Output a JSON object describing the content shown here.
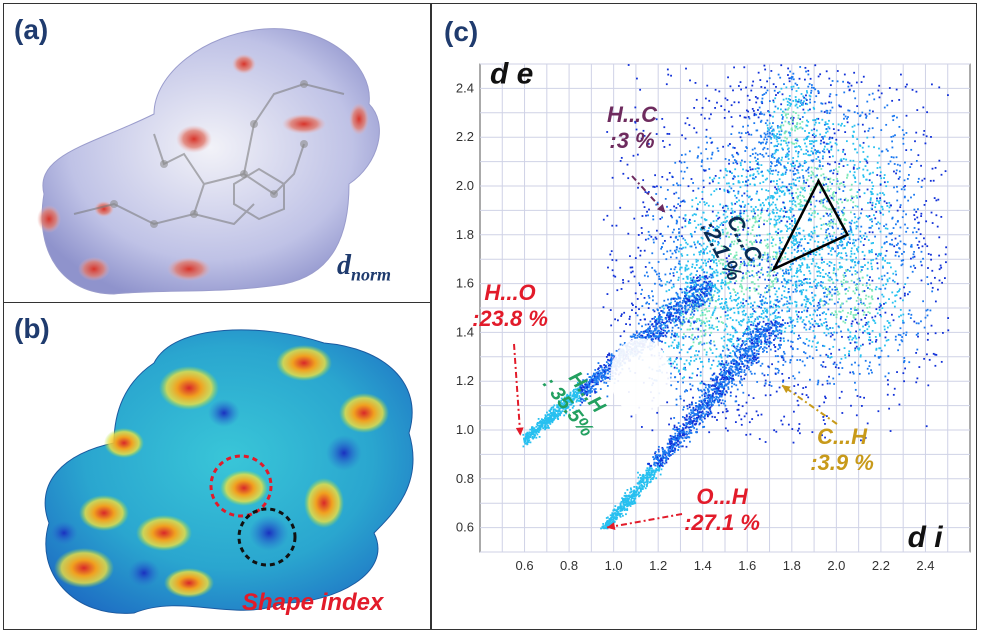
{
  "panels": {
    "a": {
      "label": "(a)",
      "caption_main": "d",
      "caption_sub": "norm"
    },
    "b": {
      "label": "(b)",
      "caption": "Shape index"
    },
    "c": {
      "label": "(c)",
      "axis_y_label": "d e",
      "axis_x_label": "d i"
    }
  },
  "colors": {
    "panel_label": "#1f3b6e",
    "h_o": "#e21b2a",
    "h_c": "#6e2b5e",
    "h_h": "#23a060",
    "c_h": "#c89a1a",
    "c_c": "#0a2b52"
  },
  "chart_data": {
    "type": "scatter",
    "title": "",
    "xlabel": "d i",
    "ylabel": "d e",
    "xlim": [
      0.4,
      2.6
    ],
    "ylim": [
      0.5,
      2.5
    ],
    "x_ticks": [
      "0.6",
      "0.8",
      "1.0",
      "1.2",
      "1.4",
      "1.6",
      "1.8",
      "2.0",
      "2.2",
      "2.4"
    ],
    "y_ticks": [
      "0.6",
      "0.8",
      "1.0",
      "1.2",
      "1.4",
      "1.6",
      "1.8",
      "2.0",
      "2.2",
      "2.4"
    ],
    "grid": true,
    "annotations": [
      {
        "id": "h-o",
        "line1": "H...O",
        "line2": ":23.8 %",
        "x": 0.59,
        "y": 0.96
      },
      {
        "id": "h-c",
        "line1": "H...C",
        "line2": ":3 %",
        "x": 1.25,
        "y": 1.85
      },
      {
        "id": "c-c",
        "line1": "C...C",
        "line2": ":2.1 %",
        "x": 1.7,
        "y": 1.65
      },
      {
        "id": "h-h",
        "line1": "H...H",
        "line2": ": 35.5%",
        "x": 1.3,
        "y": 1.05
      },
      {
        "id": "c-h",
        "line1": "C...H",
        "line2": ":3.9 %",
        "x": 1.8,
        "y": 1.2
      },
      {
        "id": "o-h",
        "line1": "O...H",
        "line2": ":27.1 %",
        "x": 0.96,
        "y": 0.6
      }
    ]
  }
}
